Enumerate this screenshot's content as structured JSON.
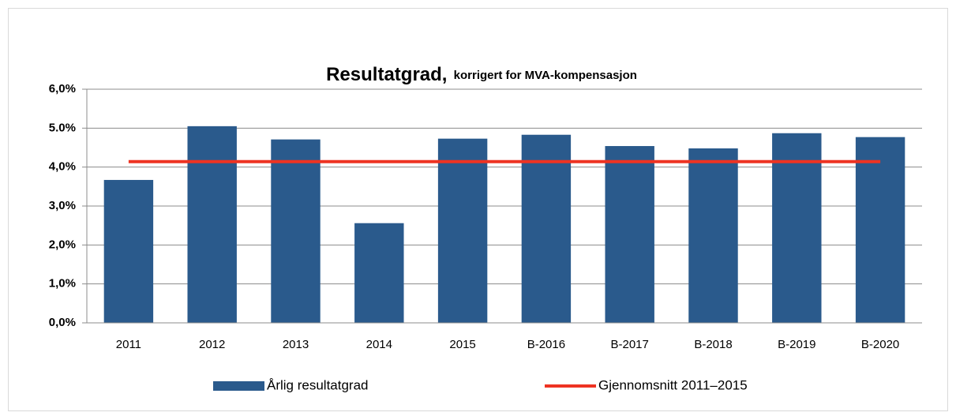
{
  "chart_data": {
    "type": "bar",
    "title": "Resultatgrad,",
    "subtitle": "korrigert for MVA-kompensasjon",
    "categories": [
      "2011",
      "2012",
      "2013",
      "2014",
      "2015",
      "B-2016",
      "B-2017",
      "B-2018",
      "B-2019",
      "B-2020"
    ],
    "series": [
      {
        "name": "Årlig resultatgrad",
        "type": "bar",
        "color": "#2a5a8c",
        "values": [
          3.67,
          5.05,
          4.71,
          2.56,
          4.73,
          4.83,
          4.54,
          4.48,
          4.87,
          4.77
        ]
      },
      {
        "name": "Gjennomsnitt 2011–2015",
        "type": "line",
        "color": "#ee3322",
        "values": [
          4.14,
          4.14,
          4.14,
          4.14,
          4.14,
          4.14,
          4.14,
          4.14,
          4.14,
          4.14
        ]
      }
    ],
    "ylim": [
      0,
      6
    ],
    "yticks": [
      {
        "value": 0,
        "label": "0,0%"
      },
      {
        "value": 1,
        "label": "1,0%"
      },
      {
        "value": 2,
        "label": "2,0%"
      },
      {
        "value": 3,
        "label": "3,0%"
      },
      {
        "value": 4,
        "label": "4,0%"
      },
      {
        "value": 5,
        "label": "5.0%"
      },
      {
        "value": 6,
        "label": "6,0%"
      }
    ],
    "grid": true,
    "legend": "bottom"
  }
}
